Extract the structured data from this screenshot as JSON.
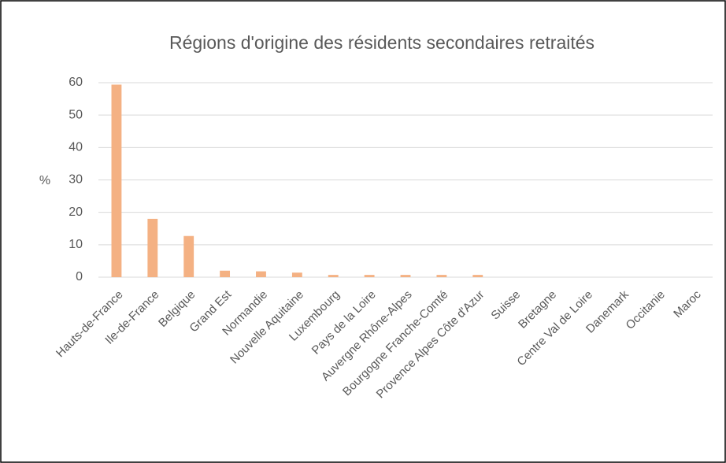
{
  "chart_data": {
    "type": "bar",
    "title": "Régions d'origine des résidents secondaires retraités",
    "y_label": "%",
    "categories": [
      "Hauts-de-France",
      "Ile-de-France",
      "Belgique",
      "Grand Est",
      "Normandie",
      "Nouvelle Aquitaine",
      "Luxembourg",
      "Pays de la Loire",
      "Auvergne Rhône-Alpes",
      "Bourgogne Franche-Comté",
      "Provence Alpes Côte d'Azur",
      "Suisse",
      "Bretagne",
      "Centre Val de Loire",
      "Danemark",
      "Occitanie",
      "Maroc"
    ],
    "values": [
      59.4,
      18,
      12.7,
      2,
      1.8,
      1.4,
      0.7,
      0.7,
      0.7,
      0.7,
      0.7,
      0,
      0,
      0,
      0,
      0,
      0
    ],
    "color": "#f4b183",
    "ylim": [
      0,
      60
    ],
    "yticks": [
      0,
      10,
      20,
      30,
      40,
      50,
      60
    ],
    "grid": true
  }
}
